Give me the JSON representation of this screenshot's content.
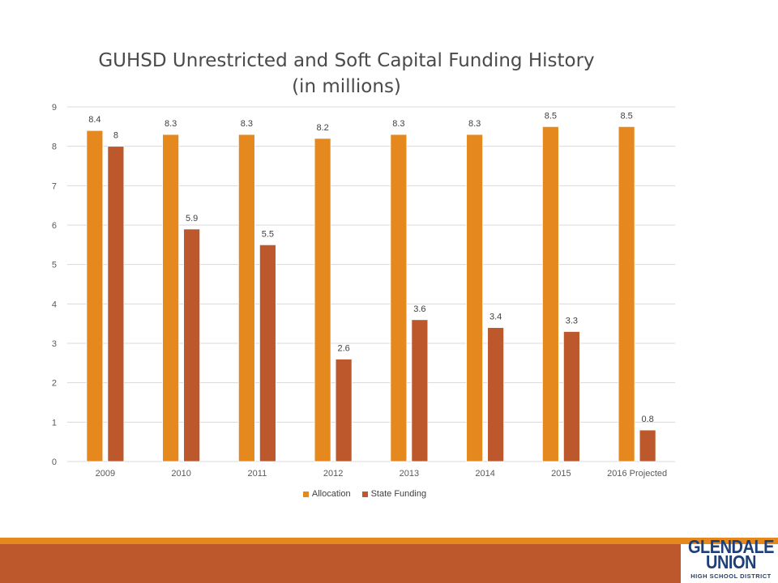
{
  "chart_data": {
    "type": "bar",
    "title_line1": "GUHSD Unrestricted and Soft Capital Funding History",
    "title_line2": "(in millions)",
    "categories": [
      "2009",
      "2010",
      "2011",
      "2012",
      "2013",
      "2014",
      "2015",
      "2016 Projected"
    ],
    "series": [
      {
        "name": "Allocation",
        "values": [
          8.4,
          8.3,
          8.3,
          8.2,
          8.3,
          8.3,
          8.5,
          8.5
        ],
        "labels": [
          "8.4",
          "8.3",
          "8.3",
          "8.2",
          "8.3",
          "8.3",
          "8.5",
          "8.5"
        ],
        "color": "#e5891e"
      },
      {
        "name": "State Funding",
        "values": [
          8,
          5.9,
          5.5,
          2.6,
          3.6,
          3.4,
          3.3,
          0.8
        ],
        "labels": [
          "8",
          "5.9",
          "5.5",
          "2.6",
          "3.6",
          "3.4",
          "3.3",
          "0.8"
        ],
        "color": "#bd582c"
      }
    ],
    "ylim": [
      0,
      9
    ],
    "yticks": [
      "0",
      "1",
      "2",
      "3",
      "4",
      "5",
      "6",
      "7",
      "8",
      "9"
    ],
    "grid": true,
    "legend": "bottom"
  },
  "footer": {
    "logo_line1": "GLENDALE",
    "logo_line2": "UNION",
    "logo_line3": "HIGH SCHOOL DISTRICT"
  }
}
